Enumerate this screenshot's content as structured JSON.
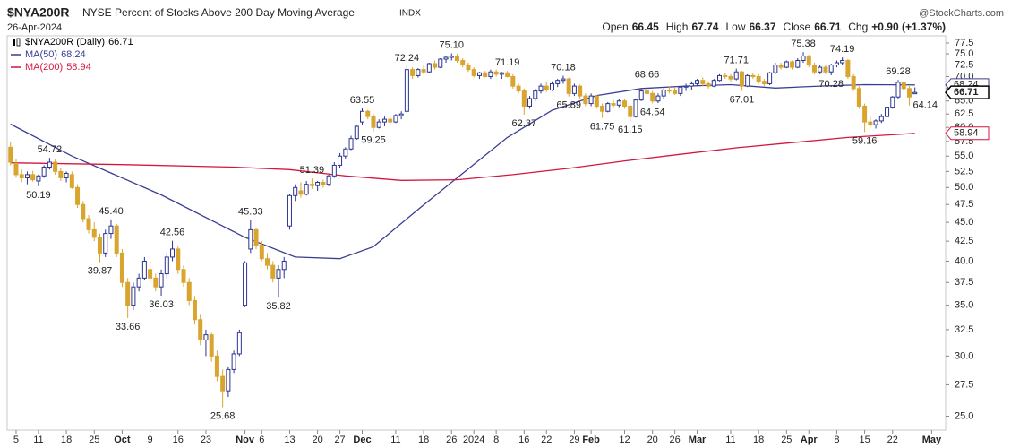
{
  "header": {
    "symbol": "$NYA200R",
    "name": "NYSE Percent of Stocks Above 200 Day Moving Average",
    "exchange": "INDX",
    "date": "26-Apr-2024",
    "brand": "@StockCharts.com",
    "quote": [
      {
        "label": "Open",
        "value": 66.45
      },
      {
        "label": "High",
        "value": 67.74
      },
      {
        "label": "Low",
        "value": 66.37
      },
      {
        "label": "Close",
        "value": 66.71
      },
      {
        "label": "Chg",
        "value": "+0.90 (+1.37%)"
      }
    ]
  },
  "chart_data": {
    "type": "candlestick",
    "log_scale": true,
    "grid": false,
    "ylim": [
      24.1,
      79.2
    ],
    "yticks": [
      {
        "value": 25,
        "label": "25.0"
      },
      27.5,
      {
        "value": 30,
        "label": "30.0"
      },
      32.5,
      {
        "value": 35,
        "label": "35.0"
      },
      37.5,
      {
        "value": 40,
        "label": "40.0"
      },
      42.5,
      {
        "value": 45,
        "label": "45.0"
      },
      47.5,
      {
        "value": 50,
        "label": "50.0"
      },
      52.5,
      {
        "value": 55,
        "label": "55.0"
      },
      57.5,
      {
        "value": 60,
        "label": "60.0"
      },
      62.5,
      {
        "value": 65,
        "label": "65.0"
      },
      67.5,
      {
        "value": 70,
        "label": "70.0"
      },
      72.5,
      {
        "value": 75,
        "label": "75.0"
      },
      77.5
    ],
    "xlim": [
      -0.6,
      167.5
    ],
    "xticks": [
      {
        "value": 1,
        "label": "5"
      },
      {
        "value": 5,
        "label": "11"
      },
      {
        "value": 10,
        "label": "18"
      },
      {
        "value": 15,
        "label": "25"
      },
      {
        "value": 20,
        "label": "Oct"
      },
      {
        "value": 25,
        "label": "9"
      },
      {
        "value": 30,
        "label": "16"
      },
      {
        "value": 35,
        "label": "23"
      },
      {
        "value": 42,
        "label": "Nov"
      },
      {
        "value": 45,
        "label": "6"
      },
      {
        "value": 50,
        "label": "13"
      },
      {
        "value": 55,
        "label": "20"
      },
      {
        "value": 59,
        "label": "27"
      },
      {
        "value": 63,
        "label": "Dec"
      },
      {
        "value": 69,
        "label": "11"
      },
      {
        "value": 74,
        "label": "18"
      },
      {
        "value": 79,
        "label": "26"
      },
      {
        "value": 83,
        "label": "2024"
      },
      {
        "value": 87,
        "label": "8"
      },
      {
        "value": 92,
        "label": "16"
      },
      {
        "value": 96,
        "label": "22"
      },
      {
        "value": 101,
        "label": "29"
      },
      {
        "value": 104,
        "label": "Feb"
      },
      {
        "value": 110,
        "label": "12"
      },
      {
        "value": 115,
        "label": "20"
      },
      {
        "value": 119,
        "label": "26"
      },
      {
        "value": 123,
        "label": "Mar"
      },
      {
        "value": 129,
        "label": "11"
      },
      {
        "value": 134,
        "label": "18"
      },
      {
        "value": 139,
        "label": "25"
      },
      {
        "value": 143,
        "label": "Apr"
      },
      {
        "value": 148,
        "label": "8"
      },
      {
        "value": 153,
        "label": "15"
      },
      {
        "value": 158,
        "label": "22"
      },
      {
        "value": 165,
        "label": "May"
      }
    ],
    "ohlc": {
      "name": "$NYA200R (Daily)",
      "last": 66.71,
      "up_color": "#2b3491",
      "down_color": "#d9a52e",
      "tag_color": "#000000",
      "open": [
        56.5,
        53.8,
        52.0,
        51.5,
        52.0,
        51.0,
        51.8,
        53.2,
        54.0,
        52.5,
        51.5,
        52.0,
        50.0,
        47.5,
        45.5,
        44.0,
        43.0,
        41.0,
        43.5,
        44.5,
        41.0,
        37.5,
        35.0,
        37.0,
        38.0,
        39.0,
        38.0,
        37.0,
        38.5,
        40.5,
        41.5,
        39.0,
        37.5,
        35.5,
        33.5,
        31.5,
        32.0,
        30.0,
        28.2,
        27.0,
        28.8,
        30.2,
        35.0,
        41.5,
        44.0,
        42.0,
        40.3,
        39.5,
        38.0,
        39.0,
        44.5,
        48.8,
        49.5,
        49.0,
        50.5,
        50.3,
        50.8,
        50.5,
        51.8,
        53.5,
        55.0,
        56.2,
        58.0,
        61.0,
        63.0,
        62.0,
        60.0,
        61.0,
        61.5,
        61.0,
        62.2,
        63.0,
        71.5,
        70.2,
        71.5,
        71.0,
        72.8,
        72.0,
        73.8,
        74.2,
        74.5,
        73.5,
        72.5,
        71.5,
        70.2,
        70.8,
        70.0,
        71.0,
        70.5,
        70.8,
        70.0,
        68.0,
        67.0,
        64.0,
        65.5,
        67.0,
        68.0,
        67.2,
        68.5,
        69.2,
        69.5,
        66.5,
        68.0,
        66.0,
        64.5,
        66.0,
        64.0,
        63.0,
        64.5,
        64.2,
        65.0,
        64.0,
        62.0,
        65.2,
        67.0,
        66.5,
        65.0,
        66.0,
        67.2,
        67.0,
        66.5,
        67.8,
        68.0,
        68.5,
        69.2,
        68.5,
        68.0,
        69.2,
        70.2,
        70.0,
        69.5,
        71.0,
        68.0,
        70.2,
        70.0,
        69.0,
        68.5,
        70.8,
        72.5,
        72.0,
        73.2,
        72.0,
        73.5,
        74.5,
        72.5,
        71.0,
        72.0,
        71.0,
        72.5,
        73.0,
        73.5,
        70.0,
        67.5,
        64.0,
        61.0,
        60.5,
        61.2,
        62.0,
        63.8,
        65.8,
        68.8,
        67.5,
        66.45
      ],
      "high": [
        57.5,
        54.5,
        52.8,
        52.5,
        52.6,
        52.0,
        53.5,
        54.72,
        54.5,
        53.0,
        52.5,
        52.5,
        50.5,
        48.0,
        46.0,
        45.0,
        43.5,
        44.0,
        45.4,
        44.8,
        41.5,
        38.0,
        37.5,
        38.5,
        40.5,
        40.0,
        38.5,
        39.0,
        41.0,
        42.56,
        41.8,
        39.5,
        38.0,
        36.0,
        34.0,
        32.5,
        32.2,
        30.5,
        28.8,
        29.0,
        30.5,
        32.5,
        40.0,
        45.33,
        44.2,
        42.5,
        41.0,
        40.0,
        39.5,
        40.5,
        49.0,
        50.5,
        50.8,
        51.0,
        51.39,
        51.0,
        51.2,
        52.0,
        54.0,
        55.5,
        56.5,
        58.5,
        60.5,
        63.55,
        63.3,
        62.5,
        61.5,
        62.0,
        62.2,
        62.5,
        63.0,
        72.24,
        72.0,
        71.8,
        72.5,
        73.0,
        73.5,
        74.0,
        74.5,
        75.1,
        75.0,
        74.0,
        73.0,
        72.0,
        71.0,
        71.2,
        71.5,
        71.5,
        71.0,
        71.19,
        70.5,
        68.5,
        67.5,
        66.0,
        67.5,
        68.5,
        68.8,
        69.0,
        69.5,
        70.18,
        69.8,
        68.5,
        68.3,
        66.5,
        66.5,
        66.2,
        64.5,
        64.8,
        65.2,
        65.5,
        65.5,
        64.3,
        65.5,
        67.5,
        68.66,
        67.0,
        66.5,
        67.5,
        68.0,
        67.8,
        68.0,
        68.5,
        69.0,
        69.5,
        69.8,
        69.0,
        69.5,
        70.5,
        70.8,
        70.5,
        71.71,
        71.2,
        70.5,
        70.8,
        70.5,
        69.5,
        71.0,
        73.0,
        73.0,
        73.5,
        73.5,
        74.0,
        75.38,
        74.8,
        73.0,
        72.5,
        72.5,
        72.8,
        73.5,
        74.19,
        73.8,
        70.5,
        68.0,
        64.5,
        62.0,
        61.5,
        62.5,
        64.0,
        66.0,
        69.28,
        69.0,
        68.0,
        67.74
      ],
      "low": [
        53.5,
        51.5,
        50.8,
        50.5,
        50.9,
        50.19,
        51.5,
        52.8,
        52.0,
        51.0,
        50.8,
        49.8,
        47.0,
        45.0,
        43.5,
        42.5,
        39.87,
        40.5,
        42.8,
        40.5,
        37.0,
        33.66,
        34.5,
        36.5,
        37.8,
        37.5,
        36.5,
        36.03,
        38.0,
        40.0,
        38.5,
        37.0,
        35.0,
        33.0,
        31.0,
        30.0,
        29.5,
        27.8,
        25.68,
        26.5,
        28.5,
        30.0,
        34.8,
        41.0,
        41.5,
        40.0,
        39.0,
        37.5,
        35.82,
        38.0,
        44.0,
        48.0,
        48.5,
        48.8,
        49.8,
        49.5,
        50.0,
        50.2,
        51.5,
        53.0,
        54.5,
        56.0,
        57.8,
        60.5,
        61.5,
        59.25,
        59.8,
        60.2,
        60.5,
        60.8,
        61.5,
        62.8,
        69.5,
        69.8,
        70.5,
        70.8,
        71.5,
        71.8,
        73.0,
        73.5,
        73.0,
        72.0,
        71.0,
        69.8,
        69.5,
        69.8,
        69.5,
        70.0,
        69.5,
        69.8,
        67.5,
        66.5,
        62.37,
        63.5,
        65.0,
        66.5,
        66.8,
        67.0,
        67.8,
        68.5,
        65.89,
        66.0,
        65.5,
        64.0,
        64.0,
        63.5,
        61.75,
        62.8,
        63.8,
        63.8,
        63.5,
        61.15,
        61.8,
        65.0,
        66.0,
        64.54,
        64.6,
        65.5,
        66.5,
        66.2,
        66.0,
        67.0,
        67.2,
        68.0,
        68.0,
        67.5,
        67.8,
        69.0,
        69.5,
        69.0,
        69.2,
        67.01,
        67.8,
        69.5,
        68.5,
        68.0,
        68.2,
        70.5,
        71.5,
        71.8,
        71.5,
        71.8,
        73.0,
        72.0,
        70.5,
        70.5,
        70.5,
        70.28,
        72.0,
        72.5,
        69.5,
        67.0,
        63.5,
        59.16,
        60.0,
        59.8,
        60.8,
        61.8,
        63.5,
        65.5,
        67.0,
        64.14,
        66.37
      ],
      "close": [
        54.0,
        52.0,
        51.5,
        52.0,
        51.2,
        51.8,
        53.2,
        54.0,
        52.5,
        51.5,
        52.2,
        50.0,
        47.5,
        45.5,
        44.0,
        43.0,
        41.0,
        43.5,
        44.5,
        41.0,
        37.5,
        35.0,
        37.0,
        38.0,
        40.0,
        38.0,
        37.0,
        38.5,
        40.5,
        41.5,
        39.0,
        37.5,
        35.5,
        33.5,
        31.5,
        32.0,
        30.0,
        28.2,
        27.0,
        28.8,
        30.2,
        32.2,
        39.8,
        44.0,
        42.0,
        40.3,
        39.5,
        38.0,
        39.0,
        40.0,
        48.8,
        50.0,
        49.0,
        50.5,
        50.3,
        50.8,
        50.5,
        51.8,
        53.5,
        55.0,
        56.2,
        58.0,
        60.2,
        63.0,
        62.0,
        60.0,
        61.0,
        61.5,
        61.0,
        62.2,
        62.5,
        71.5,
        70.2,
        71.5,
        71.0,
        72.8,
        72.0,
        73.8,
        74.2,
        74.5,
        73.5,
        72.5,
        71.5,
        70.2,
        70.8,
        70.0,
        71.0,
        70.5,
        70.8,
        70.0,
        68.0,
        67.0,
        64.0,
        65.5,
        67.0,
        68.0,
        67.2,
        68.5,
        69.2,
        69.5,
        66.5,
        68.0,
        66.0,
        64.5,
        66.0,
        64.0,
        63.0,
        64.5,
        64.2,
        65.0,
        64.0,
        62.0,
        65.2,
        67.0,
        66.5,
        65.0,
        66.0,
        67.2,
        67.0,
        66.5,
        67.8,
        68.0,
        68.5,
        69.2,
        68.5,
        68.0,
        69.2,
        70.2,
        70.0,
        69.5,
        71.0,
        68.0,
        70.2,
        70.0,
        69.0,
        68.5,
        70.8,
        72.5,
        72.0,
        73.2,
        72.0,
        73.5,
        74.5,
        72.5,
        71.0,
        72.0,
        71.0,
        72.5,
        73.0,
        73.5,
        70.0,
        67.5,
        64.0,
        61.0,
        60.5,
        61.2,
        62.0,
        63.8,
        65.8,
        68.8,
        67.5,
        65.8,
        66.71
      ]
    },
    "series": [
      {
        "name": "MA(50)",
        "color": "#3b3f93",
        "last": 68.24,
        "x": [
          0,
          11,
          27,
          42,
          51,
          59,
          65,
          73,
          81,
          89,
          97,
          105,
          113,
          121,
          129,
          137,
          145,
          153,
          162
        ],
        "values": [
          60.6,
          55.0,
          48.9,
          43.0,
          40.5,
          40.3,
          41.8,
          46.8,
          52.2,
          58.2,
          63.2,
          66.1,
          67.5,
          68.0,
          68.3,
          67.6,
          68.0,
          68.3,
          68.24
        ]
      },
      {
        "name": "MA(200)",
        "color": "#d5173f",
        "last": 58.94,
        "x": [
          0,
          20,
          40,
          50,
          60,
          70,
          80,
          90,
          100,
          110,
          120,
          130,
          140,
          150,
          162
        ],
        "values": [
          53.9,
          53.6,
          53.2,
          52.8,
          51.8,
          51.1,
          51.2,
          52.0,
          53.0,
          54.2,
          55.3,
          56.4,
          57.3,
          58.2,
          58.94
        ]
      }
    ],
    "annotations": [
      {
        "x": 7,
        "value": 54.72,
        "label": "54.72",
        "pos": "above"
      },
      {
        "x": 5,
        "value": 50.19,
        "label": "50.19",
        "pos": "below"
      },
      {
        "x": 18,
        "value": 45.4,
        "label": "45.40",
        "pos": "above"
      },
      {
        "x": 16,
        "value": 39.87,
        "label": "39.87",
        "pos": "below"
      },
      {
        "x": 21,
        "value": 33.66,
        "label": "33.66",
        "pos": "below"
      },
      {
        "x": 27,
        "value": 36.03,
        "label": "36.03",
        "pos": "below"
      },
      {
        "x": 29,
        "value": 42.56,
        "label": "42.56",
        "pos": "above"
      },
      {
        "x": 38,
        "value": 25.68,
        "label": "25.68",
        "pos": "below"
      },
      {
        "x": 43,
        "value": 45.33,
        "label": "45.33",
        "pos": "above"
      },
      {
        "x": 48,
        "value": 35.82,
        "label": "35.82",
        "pos": "below"
      },
      {
        "x": 54,
        "value": 51.39,
        "label": "51.39",
        "pos": "above"
      },
      {
        "x": 63,
        "value": 63.55,
        "label": "63.55",
        "pos": "above"
      },
      {
        "x": 65,
        "value": 59.25,
        "label": "59.25",
        "pos": "below"
      },
      {
        "x": 71,
        "value": 72.24,
        "label": "72.24",
        "pos": "above"
      },
      {
        "x": 79,
        "value": 75.1,
        "label": "75.10",
        "pos": "above"
      },
      {
        "x": 89,
        "value": 71.19,
        "label": "71.19",
        "pos": "above"
      },
      {
        "x": 92,
        "value": 62.37,
        "label": "62.37",
        "pos": "below"
      },
      {
        "x": 99,
        "value": 70.18,
        "label": "70.18",
        "pos": "above"
      },
      {
        "x": 100,
        "value": 65.89,
        "label": "65.89",
        "pos": "below"
      },
      {
        "x": 106,
        "value": 61.75,
        "label": "61.75",
        "pos": "below"
      },
      {
        "x": 111,
        "value": 61.15,
        "label": "61.15",
        "pos": "below"
      },
      {
        "x": 114,
        "value": 68.66,
        "label": "68.66",
        "pos": "above"
      },
      {
        "x": 115,
        "value": 64.54,
        "label": "64.54",
        "pos": "below"
      },
      {
        "x": 130,
        "value": 71.71,
        "label": "71.71",
        "pos": "above"
      },
      {
        "x": 131,
        "value": 67.01,
        "label": "67.01",
        "pos": "below"
      },
      {
        "x": 142,
        "value": 75.38,
        "label": "75.38",
        "pos": "above"
      },
      {
        "x": 149,
        "value": 74.19,
        "label": "74.19",
        "pos": "above"
      },
      {
        "x": 147,
        "value": 70.28,
        "label": "70.28",
        "pos": "below"
      },
      {
        "x": 153,
        "value": 59.16,
        "label": "59.16",
        "pos": "below"
      },
      {
        "x": 159,
        "value": 69.28,
        "label": "69.28",
        "pos": "above"
      },
      {
        "x": 161,
        "value": 64.14,
        "label": "64.14",
        "pos": "right"
      }
    ]
  }
}
